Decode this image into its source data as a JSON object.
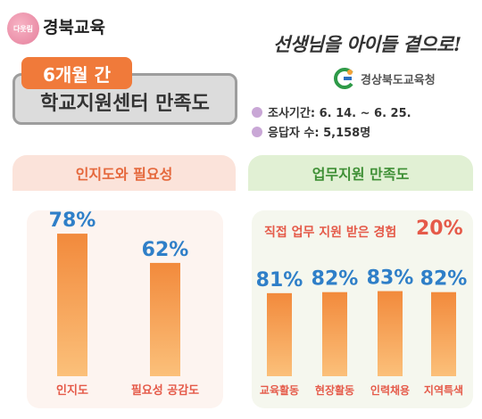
{
  "header": {
    "logo_circle_text": "다웃림",
    "logo_text": "경북교육",
    "period_pill": "6개월 간",
    "title": "학교지원센터 만족도",
    "slogan": "선생님을 아이들 곁으로!",
    "org_name": "경상북도교육청",
    "survey_period": "조사기간: 6. 14. ~ 6. 25.",
    "respondents": "응답자 수: 5,158명"
  },
  "colors": {
    "accent_orange": "#f07a3a",
    "bar_top": "#f28a3c",
    "bar_bottom": "#fbc07a",
    "value_blue": "#2f7fc8",
    "label_red": "#e55a49"
  },
  "chart_data": [
    {
      "type": "bar",
      "title": "인지도와 필요성",
      "categories": [
        "인지도",
        "필요성 공감도"
      ],
      "values": [
        78,
        62
      ],
      "value_labels": [
        "78%",
        "62%"
      ],
      "unit": "%",
      "ylim": [
        0,
        100
      ],
      "grid": false
    },
    {
      "type": "bar",
      "title": "업무지원 만족도",
      "annotation_text": "직접 업무 지원 받은 경험",
      "annotation_value": "20%",
      "categories": [
        "교육활동",
        "현장활동",
        "인력채용",
        "지역특색"
      ],
      "values": [
        81,
        82,
        83,
        82
      ],
      "value_labels": [
        "81%",
        "82%",
        "83%",
        "82%"
      ],
      "unit": "%",
      "ylim": [
        0,
        100
      ],
      "grid": false
    }
  ]
}
